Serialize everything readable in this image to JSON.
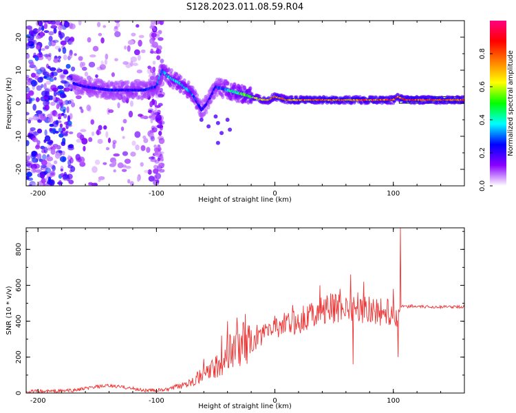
{
  "figure_title": "S128.2023.011.08.59.R04",
  "chart_data": [
    {
      "type": "heatmap",
      "xlabel": "Height of straight line (km)",
      "ylabel": "Frequency (Hz)",
      "xlim": [
        -210,
        160
      ],
      "ylim": [
        -25,
        25
      ],
      "x_ticks": [
        -200,
        -100,
        0,
        100
      ],
      "y_ticks": [
        -20,
        -10,
        0,
        10,
        20
      ],
      "colorbar": {
        "label": "Normalized spectral amplitude",
        "range": [
          0,
          1
        ],
        "ticks": [
          0.0,
          0.2,
          0.4,
          0.6,
          0.8
        ],
        "colors": [
          "#ffffff",
          "#8a00ff",
          "#0000ff",
          "#00ffff",
          "#00ff00",
          "#ffff00",
          "#ff8000",
          "#ff0000",
          "#ff0080"
        ]
      },
      "ridge": {
        "x": [
          -170,
          -160,
          -140,
          -120,
          -110,
          -100,
          -95,
          -90,
          -80,
          -70,
          -62,
          -57,
          -50,
          -40,
          -30,
          -20,
          -10,
          -5,
          0,
          10,
          20,
          40,
          60,
          80,
          100,
          104,
          110,
          130,
          160
        ],
        "freq": [
          6,
          5,
          4,
          4,
          4,
          5,
          10,
          8,
          6,
          3,
          -2,
          0,
          5,
          4,
          3,
          2,
          1,
          1,
          2,
          1,
          1,
          1,
          1,
          1,
          1,
          2,
          1,
          1,
          1
        ],
        "level": [
          0.25,
          0.25,
          0.25,
          0.25,
          0.25,
          0.3,
          0.35,
          0.4,
          0.4,
          0.35,
          0.25,
          0.2,
          0.25,
          0.4,
          0.5,
          0.6,
          0.7,
          0.75,
          0.8,
          0.8,
          0.85,
          0.85,
          0.85,
          0.85,
          0.85,
          0.8,
          0.9,
          0.9,
          0.85
        ]
      },
      "reference_band": {
        "x_start": 105,
        "x_end": 160,
        "freq_low": 0,
        "freq_high": 2
      }
    },
    {
      "type": "line",
      "xlabel": "Height of straight line (km)",
      "ylabel": "SNR (10 * v/v)",
      "xlim": [
        -210,
        160
      ],
      "ylim": [
        0,
        920
      ],
      "x_ticks": [
        -200,
        -100,
        0,
        100
      ],
      "y_ticks": [
        0,
        200,
        400,
        600,
        800
      ],
      "color": "#ee3333",
      "series": [
        {
          "x": [
            -210,
            -190,
            -170,
            -160,
            -150,
            -140,
            -130,
            -120,
            -110,
            -100,
            -90,
            -80,
            -70,
            -60,
            -50,
            -45,
            -40,
            -35,
            -30,
            -25,
            -20,
            -15,
            -10,
            -5,
            0,
            5,
            10,
            15,
            20,
            25,
            30,
            35,
            40,
            45,
            50,
            55,
            60,
            66,
            70,
            75,
            80,
            85,
            90,
            95,
            100,
            104,
            106,
            108,
            110,
            115,
            120,
            130,
            140,
            150,
            160
          ],
          "y": [
            8,
            10,
            15,
            25,
            35,
            40,
            35,
            25,
            15,
            15,
            20,
            40,
            70,
            100,
            140,
            170,
            220,
            250,
            270,
            280,
            260,
            300,
            330,
            350,
            370,
            380,
            380,
            390,
            400,
            420,
            440,
            450,
            460,
            470,
            470,
            480,
            480,
            470,
            480,
            470,
            470,
            460,
            450,
            450,
            440,
            430,
            470,
            490,
            480,
            485,
            480,
            480,
            480,
            480,
            480
          ],
          "spikes": [
            {
              "x": -60,
              "y": 190
            },
            {
              "x": -45,
              "y": 320
            },
            {
              "x": -40,
              "y": 400
            },
            {
              "x": -32,
              "y": 420
            },
            {
              "x": -25,
              "y": 440
            },
            {
              "x": -20,
              "y": 350
            },
            {
              "x": -15,
              "y": 380
            },
            {
              "x": 0,
              "y": 430
            },
            {
              "x": 15,
              "y": 490
            },
            {
              "x": 38,
              "y": 600
            },
            {
              "x": 55,
              "y": 580
            },
            {
              "x": 64,
              "y": 660
            },
            {
              "x": 66,
              "y": 160
            },
            {
              "x": 75,
              "y": 620
            },
            {
              "x": 100,
              "y": 580
            },
            {
              "x": 104,
              "y": 200
            },
            {
              "x": 106,
              "y": 920
            }
          ]
        }
      ]
    }
  ]
}
